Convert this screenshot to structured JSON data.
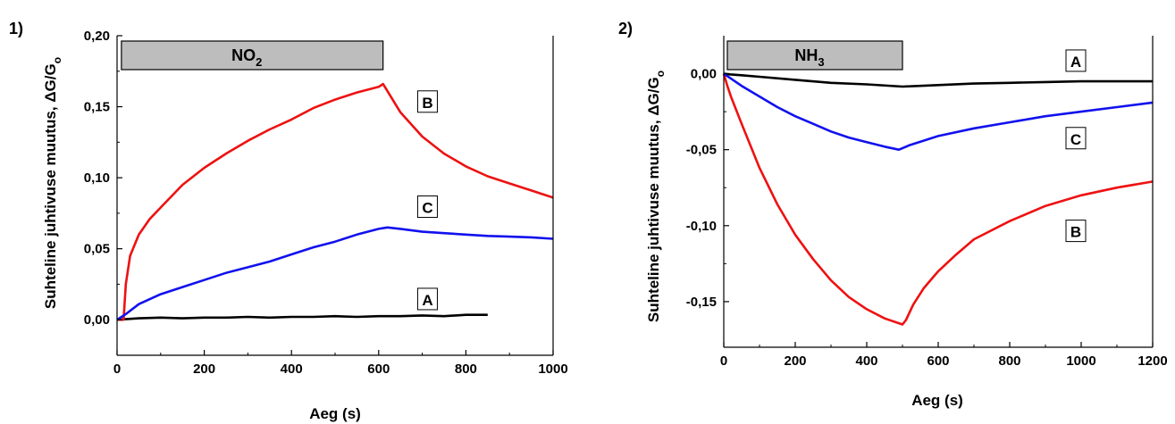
{
  "chart_data": [
    {
      "panel_label": "1)",
      "type": "line",
      "xlabel": "Aeg (s)",
      "ylabel": "Suhteline juhtivuse muutus, ΔG/G",
      "ylabel_sub": "o",
      "xlim": [
        0,
        1000
      ],
      "ylim": [
        -0.025,
        0.2
      ],
      "xticks": [
        0,
        200,
        400,
        600,
        800,
        1000
      ],
      "xtick_labels": [
        "0",
        "200",
        "400",
        "600",
        "800",
        "1000"
      ],
      "yticks": [
        0,
        0.05,
        0.1,
        0.15,
        0.2
      ],
      "ytick_labels": [
        "0,00",
        "0,05",
        "0,10",
        "0,15",
        "0,20"
      ],
      "gas_bar": {
        "label": "NO",
        "sub": "2",
        "x_start": 10,
        "x_end": 610
      },
      "series": [
        {
          "name": "A",
          "color": "#000000",
          "x": [
            0,
            50,
            100,
            150,
            200,
            250,
            300,
            350,
            400,
            450,
            500,
            550,
            600,
            650,
            700,
            750,
            800,
            850
          ],
          "y": [
            0.0,
            0.001,
            0.0015,
            0.001,
            0.0015,
            0.0015,
            0.002,
            0.0015,
            0.002,
            0.002,
            0.0025,
            0.002,
            0.0025,
            0.0025,
            0.003,
            0.0025,
            0.0035,
            0.0035
          ]
        },
        {
          "name": "B",
          "color": "#ee1111",
          "x": [
            0,
            15,
            20,
            30,
            50,
            75,
            100,
            150,
            200,
            250,
            300,
            350,
            400,
            450,
            500,
            550,
            600,
            610,
            620,
            650,
            700,
            750,
            800,
            850,
            900,
            950,
            1000
          ],
          "y": [
            0.0,
            0.0,
            0.025,
            0.045,
            0.06,
            0.071,
            0.079,
            0.095,
            0.107,
            0.117,
            0.126,
            0.134,
            0.141,
            0.149,
            0.155,
            0.16,
            0.164,
            0.166,
            0.161,
            0.146,
            0.129,
            0.117,
            0.108,
            0.101,
            0.096,
            0.091,
            0.086
          ]
        },
        {
          "name": "C",
          "color": "#1111ee",
          "x": [
            0,
            20,
            50,
            100,
            150,
            200,
            250,
            300,
            350,
            400,
            450,
            500,
            550,
            600,
            620,
            650,
            700,
            750,
            800,
            850,
            900,
            950,
            1000
          ],
          "y": [
            0.0,
            0.004,
            0.011,
            0.018,
            0.023,
            0.028,
            0.033,
            0.037,
            0.041,
            0.046,
            0.051,
            0.055,
            0.06,
            0.064,
            0.065,
            0.064,
            0.062,
            0.061,
            0.06,
            0.059,
            0.0585,
            0.058,
            0.057
          ]
        }
      ],
      "annotations": [
        {
          "text": "B",
          "x": 712,
          "y": 0.153
        },
        {
          "text": "C",
          "x": 712,
          "y": 0.079
        },
        {
          "text": "A",
          "x": 712,
          "y": 0.014
        }
      ]
    },
    {
      "panel_label": "2)",
      "type": "line",
      "xlabel": "Aeg (s)",
      "ylabel": "Suhteline juhtivuse muutus, ΔG/G",
      "ylabel_sub": "o",
      "xlim": [
        0,
        1200
      ],
      "ylim": [
        -0.18,
        0.025
      ],
      "xticks": [
        0,
        200,
        400,
        600,
        800,
        1000,
        1200
      ],
      "xtick_labels": [
        "0",
        "200",
        "400",
        "600",
        "800",
        "1000",
        "1200"
      ],
      "yticks": [
        0,
        -0.05,
        -0.1,
        -0.15
      ],
      "ytick_labels": [
        "0,00",
        "-0,05",
        "-0,10",
        "-0,15"
      ],
      "gas_bar": {
        "label": "NH",
        "sub": "3",
        "x_start": 10,
        "x_end": 500
      },
      "series": [
        {
          "name": "A",
          "color": "#000000",
          "x": [
            0,
            20,
            50,
            100,
            200,
            300,
            400,
            500,
            550,
            600,
            700,
            800,
            900,
            1000,
            1100,
            1200
          ],
          "y": [
            0.0,
            -0.0005,
            -0.001,
            -0.002,
            -0.004,
            -0.006,
            -0.007,
            -0.0085,
            -0.008,
            -0.0075,
            -0.0065,
            -0.006,
            -0.0055,
            -0.005,
            -0.005,
            -0.005
          ]
        },
        {
          "name": "B",
          "color": "#ee1111",
          "x": [
            0,
            10,
            20,
            50,
            100,
            150,
            200,
            250,
            300,
            350,
            400,
            450,
            500,
            510,
            530,
            560,
            600,
            650,
            700,
            800,
            900,
            1000,
            1100,
            1200
          ],
          "y": [
            0.0,
            -0.008,
            -0.015,
            -0.033,
            -0.062,
            -0.086,
            -0.106,
            -0.122,
            -0.136,
            -0.147,
            -0.155,
            -0.161,
            -0.165,
            -0.162,
            -0.152,
            -0.141,
            -0.13,
            -0.119,
            -0.109,
            -0.097,
            -0.087,
            -0.08,
            -0.075,
            -0.071
          ]
        },
        {
          "name": "C",
          "color": "#1111ee",
          "x": [
            0,
            50,
            100,
            150,
            200,
            250,
            300,
            350,
            400,
            450,
            490,
            520,
            560,
            600,
            700,
            800,
            900,
            1000,
            1100,
            1200
          ],
          "y": [
            0.0,
            -0.008,
            -0.015,
            -0.022,
            -0.028,
            -0.033,
            -0.038,
            -0.042,
            -0.045,
            -0.048,
            -0.05,
            -0.047,
            -0.044,
            -0.041,
            -0.036,
            -0.032,
            -0.028,
            -0.025,
            -0.022,
            -0.019
          ]
        }
      ],
      "annotations": [
        {
          "text": "A",
          "x": 985,
          "y": 0.008
        },
        {
          "text": "C",
          "x": 985,
          "y": -0.043
        },
        {
          "text": "B",
          "x": 985,
          "y": -0.104
        }
      ]
    }
  ]
}
